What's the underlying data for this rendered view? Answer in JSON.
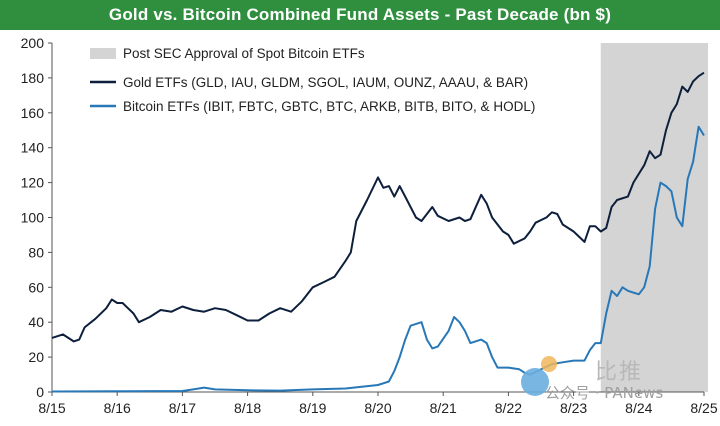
{
  "chart_data": {
    "type": "line",
    "title": "Gold vs. Bitcoin Combined Fund Assets - Past Decade (bn $)",
    "x_tick_labels": [
      "8/15",
      "8/16",
      "8/17",
      "8/18",
      "8/19",
      "8/20",
      "8/21",
      "8/22",
      "8/23",
      "8/24",
      "8/25"
    ],
    "ylim": [
      0,
      200
    ],
    "y_ticks": [
      0,
      20,
      40,
      60,
      80,
      100,
      120,
      140,
      160,
      180,
      200
    ],
    "grid": false,
    "legend_position": "top-left",
    "shaded_region": {
      "label": "Post SEC Approval of Spot Bitcoin ETFs",
      "x_start": "1/24",
      "x_end": "8/25",
      "color": "#d4d4d4"
    },
    "series": [
      {
        "name": "Gold ETFs (GLD, IAU, GLDM, SGOL, IAUM, OUNZ, AAAU, & BAR)",
        "color": "#0d1f3c",
        "points": [
          [
            "8/15",
            31
          ],
          [
            "10/15",
            33
          ],
          [
            "12/15",
            29
          ],
          [
            "1/16",
            30
          ],
          [
            "2/16",
            37
          ],
          [
            "4/16",
            42
          ],
          [
            "6/16",
            48
          ],
          [
            "7/16",
            53
          ],
          [
            "8/16",
            51
          ],
          [
            "9/16",
            51
          ],
          [
            "11/16",
            45
          ],
          [
            "12/16",
            40
          ],
          [
            "2/17",
            43
          ],
          [
            "4/17",
            47
          ],
          [
            "6/17",
            46
          ],
          [
            "8/17",
            49
          ],
          [
            "10/17",
            47
          ],
          [
            "12/17",
            46
          ],
          [
            "2/18",
            48
          ],
          [
            "4/18",
            47
          ],
          [
            "6/18",
            44
          ],
          [
            "8/18",
            41
          ],
          [
            "10/18",
            41
          ],
          [
            "12/18",
            45
          ],
          [
            "2/19",
            48
          ],
          [
            "4/19",
            46
          ],
          [
            "6/19",
            52
          ],
          [
            "8/19",
            60
          ],
          [
            "10/19",
            63
          ],
          [
            "12/19",
            66
          ],
          [
            "2/20",
            75
          ],
          [
            "3/20",
            80
          ],
          [
            "4/20",
            98
          ],
          [
            "6/20",
            110
          ],
          [
            "8/20",
            123
          ],
          [
            "9/20",
            117
          ],
          [
            "10/20",
            118
          ],
          [
            "11/20",
            112
          ],
          [
            "12/20",
            118
          ],
          [
            "1/21",
            112
          ],
          [
            "3/21",
            100
          ],
          [
            "4/21",
            98
          ],
          [
            "6/21",
            106
          ],
          [
            "7/21",
            101
          ],
          [
            "9/21",
            98
          ],
          [
            "11/21",
            100
          ],
          [
            "12/21",
            98
          ],
          [
            "1/22",
            99
          ],
          [
            "3/22",
            113
          ],
          [
            "4/22",
            108
          ],
          [
            "5/22",
            100
          ],
          [
            "7/22",
            92
          ],
          [
            "8/22",
            90
          ],
          [
            "9/22",
            85
          ],
          [
            "11/22",
            88
          ],
          [
            "12/22",
            92
          ],
          [
            "1/23",
            97
          ],
          [
            "3/23",
            100
          ],
          [
            "4/23",
            103
          ],
          [
            "5/23",
            102
          ],
          [
            "6/23",
            96
          ],
          [
            "8/23",
            92
          ],
          [
            "10/23",
            86
          ],
          [
            "11/23",
            95
          ],
          [
            "12/23",
            95
          ],
          [
            "1/24",
            92
          ],
          [
            "2/24",
            94
          ],
          [
            "3/24",
            106
          ],
          [
            "4/24",
            110
          ],
          [
            "6/24",
            112
          ],
          [
            "7/24",
            120
          ],
          [
            "9/24",
            130
          ],
          [
            "10/24",
            138
          ],
          [
            "11/24",
            134
          ],
          [
            "12/24",
            136
          ],
          [
            "1/25",
            150
          ],
          [
            "2/25",
            160
          ],
          [
            "3/25",
            165
          ],
          [
            "4/25",
            175
          ],
          [
            "5/25",
            172
          ],
          [
            "6/25",
            178
          ],
          [
            "7/25",
            181
          ],
          [
            "8/25",
            183
          ]
        ]
      },
      {
        "name": "Bitcoin ETFs (IBIT, FBTC, GBTC, BTC, ARKB, BITB, BITO, & HODL)",
        "color": "#2878b8",
        "points": [
          [
            "8/15",
            0.3
          ],
          [
            "8/16",
            0.4
          ],
          [
            "8/17",
            0.6
          ],
          [
            "10/17",
            1.5
          ],
          [
            "12/17",
            2.5
          ],
          [
            "2/18",
            1.5
          ],
          [
            "8/18",
            1
          ],
          [
            "2/19",
            0.8
          ],
          [
            "8/19",
            1.5
          ],
          [
            "2/20",
            2
          ],
          [
            "8/20",
            4
          ],
          [
            "10/20",
            6
          ],
          [
            "11/20",
            12
          ],
          [
            "12/20",
            20
          ],
          [
            "1/21",
            30
          ],
          [
            "2/21",
            38
          ],
          [
            "4/21",
            40
          ],
          [
            "5/21",
            30
          ],
          [
            "6/21",
            25
          ],
          [
            "7/21",
            26
          ],
          [
            "9/21",
            35
          ],
          [
            "10/21",
            43
          ],
          [
            "11/21",
            40
          ],
          [
            "12/21",
            35
          ],
          [
            "1/22",
            28
          ],
          [
            "3/22",
            30
          ],
          [
            "4/22",
            28
          ],
          [
            "5/22",
            20
          ],
          [
            "6/22",
            14
          ],
          [
            "8/22",
            14
          ],
          [
            "10/22",
            13
          ],
          [
            "11/22",
            11
          ],
          [
            "12/22",
            10
          ],
          [
            "2/23",
            13
          ],
          [
            "4/23",
            16
          ],
          [
            "6/23",
            17
          ],
          [
            "8/23",
            18
          ],
          [
            "10/23",
            18
          ],
          [
            "11/23",
            24
          ],
          [
            "12/23",
            28
          ],
          [
            "1/24",
            28
          ],
          [
            "2/24",
            45
          ],
          [
            "3/24",
            58
          ],
          [
            "4/24",
            55
          ],
          [
            "5/24",
            60
          ],
          [
            "6/24",
            58
          ],
          [
            "8/24",
            56
          ],
          [
            "9/24",
            60
          ],
          [
            "10/24",
            72
          ],
          [
            "11/24",
            105
          ],
          [
            "12/24",
            120
          ],
          [
            "1/25",
            118
          ],
          [
            "2/25",
            115
          ],
          [
            "3/25",
            100
          ],
          [
            "4/25",
            95
          ],
          [
            "5/25",
            122
          ],
          [
            "6/25",
            132
          ],
          [
            "7/25",
            152
          ],
          [
            "8/25",
            147
          ]
        ]
      }
    ]
  },
  "watermark": {
    "big_text": "比推",
    "small_text": "公众号 · PANews"
  }
}
